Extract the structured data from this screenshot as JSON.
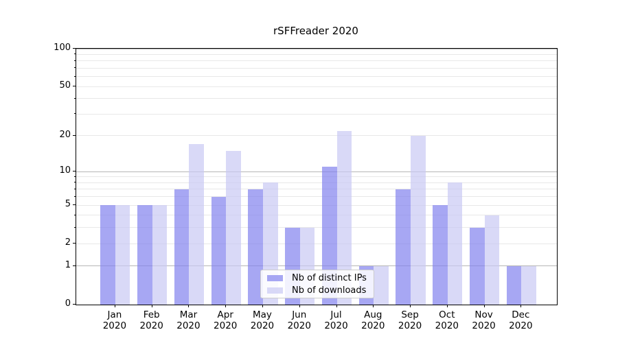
{
  "chart_data": {
    "type": "bar",
    "title": "rSFFreader 2020",
    "categories": [
      "Jan",
      "Feb",
      "Mar",
      "Apr",
      "May",
      "Jun",
      "Jul",
      "Aug",
      "Sep",
      "Oct",
      "Nov",
      "Dec"
    ],
    "category_year": "2020",
    "series": [
      {
        "name": "Nb of distinct IPs",
        "color": "#8282ee",
        "values": [
          5,
          5,
          7,
          6,
          7,
          3,
          11,
          1,
          7,
          5,
          3,
          1
        ]
      },
      {
        "name": "Nb of downloads",
        "color": "#c9c9f4",
        "values": [
          5,
          5,
          17,
          15,
          8,
          3,
          22,
          1,
          20,
          8,
          4,
          1
        ]
      }
    ],
    "bar_opacity": 0.7,
    "yaxis": {
      "scale": "log1p",
      "ylim": [
        0,
        100
      ],
      "labeled_ticks": [
        0,
        1,
        2,
        5,
        10,
        20,
        50,
        100
      ],
      "major_gridlines": [
        1,
        10,
        100
      ],
      "minor_gridlines": [
        2,
        3,
        4,
        5,
        6,
        7,
        8,
        9,
        20,
        30,
        40,
        50,
        60,
        70,
        80,
        90
      ]
    },
    "legend_position": "lower center",
    "grid": true
  },
  "style": {
    "background": "#ffffff",
    "axis_color": "#000000",
    "major_grid_color": "#b5b5b5",
    "minor_grid_color": "#e8e8e8"
  }
}
